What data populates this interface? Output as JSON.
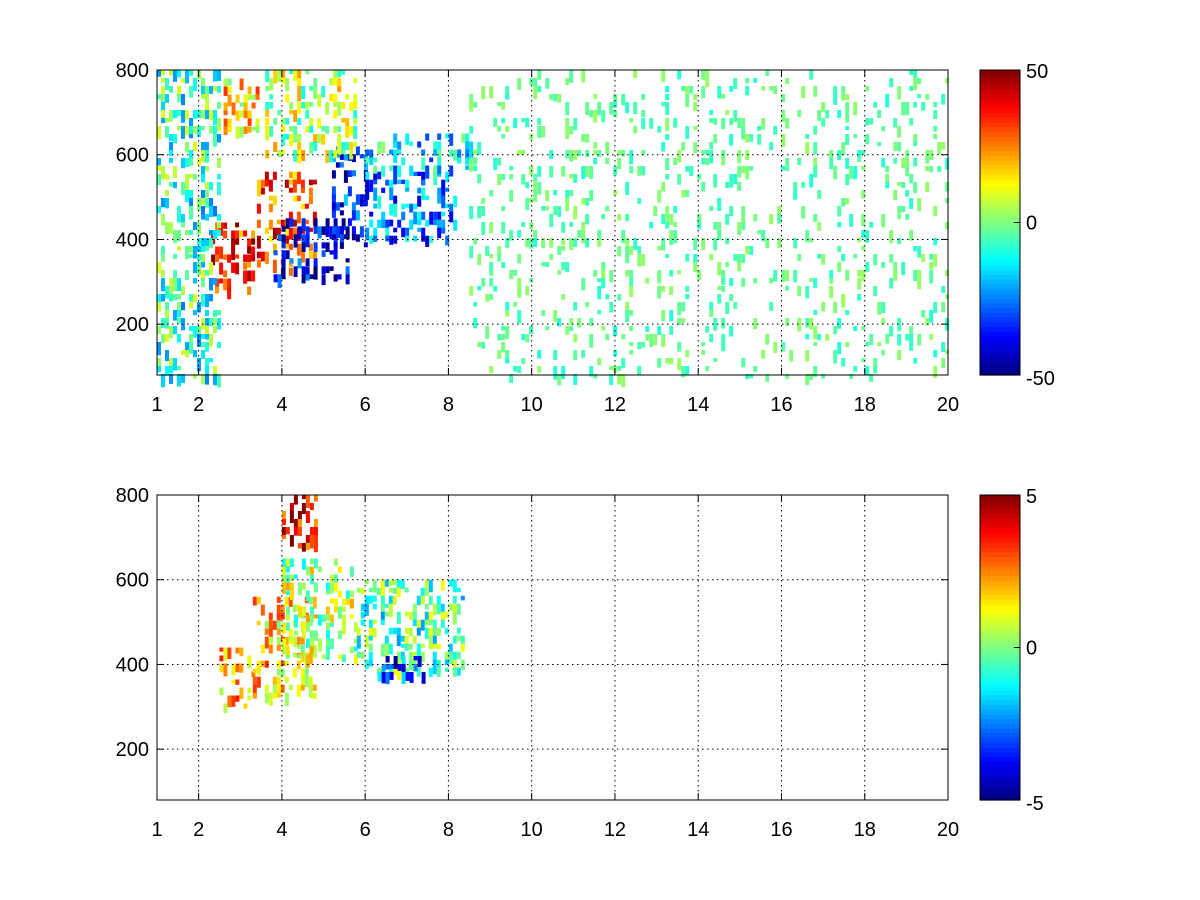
{
  "chart_data": [
    {
      "type": "heatmap",
      "title": "",
      "xlabel": "",
      "ylabel": "",
      "xlim": [
        1,
        20
      ],
      "ylim": [
        80,
        800
      ],
      "x_ticks": [
        1,
        2,
        4,
        6,
        8,
        10,
        12,
        14,
        16,
        18,
        20
      ],
      "x_tick_labels": [
        "1",
        "2",
        "4",
        "6",
        "8",
        "10",
        "12",
        "14",
        "16",
        "18",
        "20"
      ],
      "y_ticks": [
        200,
        400,
        600,
        800
      ],
      "y_tick_labels": [
        "200",
        "400",
        "600",
        "800"
      ],
      "grid": true,
      "colormap": "jet",
      "colorbar": {
        "range": [
          -50,
          50
        ],
        "tick_values": [
          50,
          0,
          -50
        ],
        "tick_labels": [
          "50",
          "0",
          "-50"
        ]
      },
      "regions": [
        {
          "x": [
            2.3,
            3.3
          ],
          "y": [
            280,
            440
          ],
          "value": 35
        },
        {
          "x": [
            3.4,
            4.8
          ],
          "y": [
            330,
            560
          ],
          "value": 30
        },
        {
          "x": [
            3.8,
            5.6
          ],
          "y": [
            300,
            450
          ],
          "value": -40
        },
        {
          "x": [
            5.2,
            6.0
          ],
          "y": [
            380,
            620
          ],
          "value": -35
        },
        {
          "x": [
            6.0,
            8.2
          ],
          "y": [
            400,
            560
          ],
          "value": -25
        },
        {
          "x": [
            2.6,
            3.4
          ],
          "y": [
            650,
            780
          ],
          "value": 15
        },
        {
          "x": [
            3.6,
            5.8
          ],
          "y": [
            600,
            800
          ],
          "value": 5
        },
        {
          "x": [
            6.0,
            8.6
          ],
          "y": [
            560,
            650
          ],
          "value": -15
        },
        {
          "x": [
            1.0,
            2.5
          ],
          "y": [
            80,
            800
          ],
          "value": -8
        },
        {
          "x": [
            8.5,
            20.0
          ],
          "y": [
            80,
            800
          ],
          "value": -3
        }
      ]
    },
    {
      "type": "heatmap",
      "title": "",
      "xlabel": "",
      "ylabel": "",
      "xlim": [
        1,
        20
      ],
      "ylim": [
        80,
        800
      ],
      "x_ticks": [
        1,
        2,
        4,
        6,
        8,
        10,
        12,
        14,
        16,
        18,
        20
      ],
      "x_tick_labels": [
        "1",
        "2",
        "4",
        "6",
        "8",
        "10",
        "12",
        "14",
        "16",
        "18",
        "20"
      ],
      "y_ticks": [
        200,
        400,
        600,
        800
      ],
      "y_tick_labels": [
        "200",
        "400",
        "600",
        "800"
      ],
      "grid": true,
      "colormap": "jet",
      "colorbar": {
        "range": [
          -5,
          5
        ],
        "tick_values": [
          5,
          0,
          -5
        ],
        "tick_labels": [
          "5",
          "0",
          "-5"
        ]
      },
      "regions": [
        {
          "x": [
            2.5,
            3.3
          ],
          "y": [
            300,
            440
          ],
          "value": 2
        },
        {
          "x": [
            3.3,
            4.8
          ],
          "y": [
            330,
            560
          ],
          "value": 1.5
        },
        {
          "x": [
            4.0,
            5.8
          ],
          "y": [
            420,
            650
          ],
          "value": 0.5
        },
        {
          "x": [
            5.8,
            8.3
          ],
          "y": [
            380,
            600
          ],
          "value": -0.5
        },
        {
          "x": [
            4.0,
            4.8
          ],
          "y": [
            680,
            800
          ],
          "value": 4
        },
        {
          "x": [
            6.3,
            7.5
          ],
          "y": [
            380,
            420
          ],
          "value": -3
        }
      ]
    }
  ]
}
